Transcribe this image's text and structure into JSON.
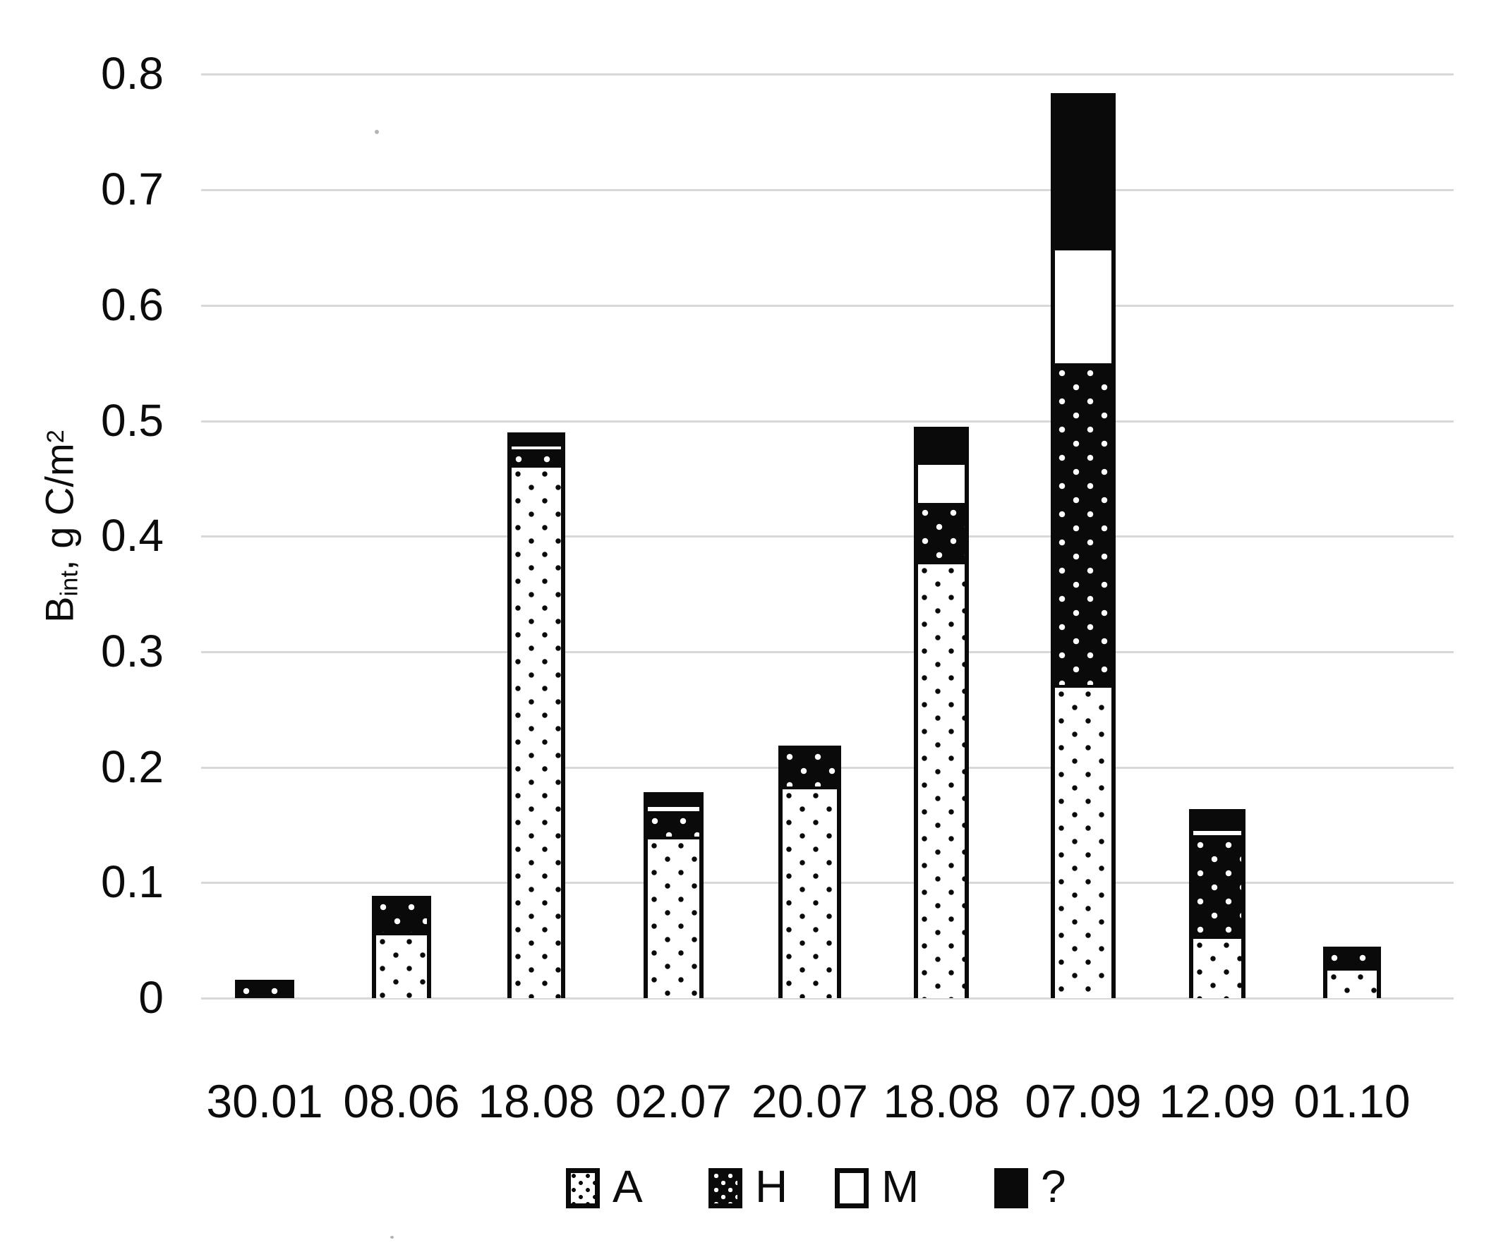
{
  "chart_data": {
    "type": "bar",
    "stacked": true,
    "title": "",
    "ylabel": "Bint, g C/m²",
    "ylabel_parts": {
      "base": "B",
      "subscript": "int",
      "rest": ", g C/m",
      "superscript": "2"
    },
    "categories": [
      "30.01",
      "08.06",
      "18.08",
      "02.07",
      "20.07",
      "18.08",
      "07.09",
      "12.09",
      "01.10"
    ],
    "series": [
      {
        "name": "A",
        "pattern": "black-dots-on-white",
        "values": [
          0,
          0.057,
          0.462,
          0.14,
          0.183,
          0.378,
          0.271,
          0.054,
          0.026
        ]
      },
      {
        "name": "H",
        "pattern": "white-dots-on-black",
        "values": [
          0.012,
          0.028,
          0.013,
          0.022,
          0.032,
          0.051,
          0.279,
          0.087,
          0.015
        ]
      },
      {
        "name": "M",
        "pattern": "solid-white",
        "values": [
          0,
          0,
          0.005,
          0.006,
          0,
          0.035,
          0.1,
          0.006,
          0
        ]
      },
      {
        "name": "?",
        "pattern": "solid-black",
        "values": [
          0,
          0,
          0.006,
          0.007,
          0,
          0.027,
          0.13,
          0.013,
          0
        ]
      }
    ],
    "totals": [
      0.012,
      0.085,
      0.486,
      0.175,
      0.215,
      0.491,
      0.78,
      0.16,
      0.041
    ],
    "ylim": [
      0,
      0.8
    ],
    "yticks": [
      0.8,
      0.7,
      0.6,
      0.5,
      0.4,
      0.3,
      0.2,
      0.1,
      0
    ],
    "ytick_labels": [
      "0.8",
      "0.7",
      "0.6",
      "0.5",
      "0.4",
      "0.3",
      "0.2",
      "0.1",
      "0"
    ],
    "grid": "horizontal",
    "legend_position": "bottom"
  },
  "legend": {
    "items": [
      {
        "label": "A"
      },
      {
        "label": "H"
      },
      {
        "label": "M"
      },
      {
        "label": "?"
      }
    ]
  },
  "colors": {
    "ink": "#0a0a0a",
    "grid": "#d8d8d8",
    "background": "#ffffff",
    "text": "#0c0c0c"
  }
}
